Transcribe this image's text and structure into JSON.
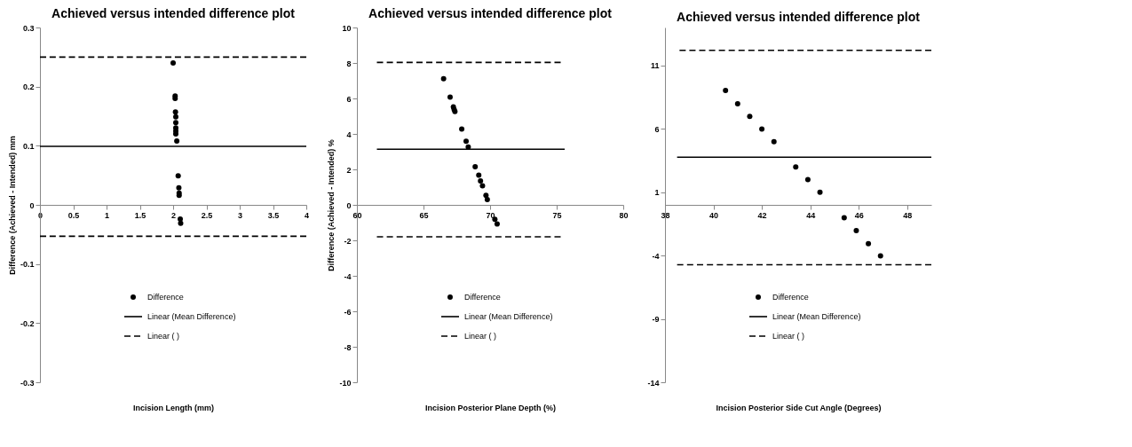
{
  "chart_data": [
    {
      "type": "scatter",
      "title": "Achieved versus intended difference plot",
      "xlabel": "Incision Length (mm)",
      "ylabel": "Difference (Achieved - Intended) mm",
      "xlim": [
        0,
        4
      ],
      "xticks": [
        0,
        0.5,
        1,
        1.5,
        2,
        2.5,
        3,
        3.5,
        4
      ],
      "ylim": [
        -0.3,
        0.3
      ],
      "yticks": [
        -0.3,
        -0.2,
        -0.1,
        0,
        0.1,
        0.2,
        0.3
      ],
      "grid": false,
      "legend": "bottom",
      "series": [
        {
          "name": "Difference",
          "type": "scatter",
          "marker": "circle",
          "color": "#000000",
          "x": [
            2.0,
            2.03,
            2.03,
            2.035,
            2.04,
            2.04,
            2.04,
            2.04,
            2.04,
            2.055,
            2.076,
            2.086,
            2.09,
            2.09,
            2.107,
            2.113
          ],
          "values": [
            0.24,
            0.184,
            0.18,
            0.157,
            0.149,
            0.139,
            0.13,
            0.125,
            0.12,
            0.108,
            0.049,
            0.029,
            0.02,
            0.016,
            -0.024,
            -0.031
          ]
        },
        {
          "name": "Linear (Mean Difference)",
          "type": "line",
          "color": "#000000",
          "line_style": "solid",
          "x": [
            0,
            4
          ],
          "values": [
            0.099,
            0.099
          ]
        },
        {
          "name": "Linear ( )",
          "type": "line",
          "color": "#000000",
          "line_style": "dashed",
          "x": [
            0,
            4
          ],
          "values": [
            0.25,
            0.25
          ]
        },
        {
          "type": "line",
          "color": "#000000",
          "line_style": "dashed",
          "x": [
            0,
            4
          ],
          "values": [
            -0.053,
            -0.053
          ]
        }
      ]
    },
    {
      "type": "scatter",
      "title": "Achieved versus intended difference plot",
      "xlabel": "Incision Posterior Plane Depth (%)",
      "ylabel": "Difference (Achieved - Intended) %",
      "xlim": [
        60,
        80
      ],
      "xticks": [
        60,
        65,
        70,
        75,
        80
      ],
      "ylim": [
        -10,
        10
      ],
      "yticks": [
        -10,
        -8,
        -6,
        -4,
        -2,
        0,
        2,
        4,
        6,
        8,
        10
      ],
      "grid": false,
      "legend": "bottom",
      "series": [
        {
          "name": "Difference",
          "type": "scatter",
          "marker": "circle",
          "color": "#000000",
          "x": [
            66.51,
            67.0,
            67.24,
            67.3,
            67.36,
            67.87,
            68.2,
            68.36,
            68.88,
            69.15,
            69.28,
            69.43,
            69.69,
            69.79,
            70.36,
            70.53
          ],
          "values": [
            7.11,
            6.08,
            5.53,
            5.38,
            5.26,
            4.27,
            3.59,
            3.26,
            2.15,
            1.67,
            1.35,
            1.08,
            0.54,
            0.3,
            -0.81,
            -1.08
          ]
        },
        {
          "name": "Linear (Mean Difference)",
          "type": "line",
          "color": "#000000",
          "line_style": "solid",
          "x": [
            61.5,
            75.6
          ],
          "values": [
            3.14,
            3.14
          ]
        },
        {
          "name": "Linear ( )",
          "type": "line",
          "color": "#000000",
          "line_style": "dashed",
          "x": [
            61.5,
            75.3
          ],
          "values": [
            8.03,
            8.03
          ]
        },
        {
          "type": "line",
          "color": "#000000",
          "line_style": "dashed",
          "x": [
            61.5,
            75.3
          ],
          "values": [
            -1.8,
            -1.8
          ]
        }
      ]
    },
    {
      "type": "scatter",
      "title": "Achieved versus intended difference plot",
      "xlabel": "Incision Posterior Side Cut Angle (Degrees)",
      "xlim": [
        38,
        49
      ],
      "xticks": [
        38,
        40,
        42,
        44,
        46,
        48
      ],
      "ylim": [
        -14,
        14
      ],
      "yticks": [
        -14,
        -9,
        -4,
        1,
        6,
        11
      ],
      "grid": false,
      "legend": "bottom",
      "series": [
        {
          "name": "Difference",
          "type": "scatter",
          "marker": "circle",
          "color": "#000000",
          "x": [
            40.5,
            41.0,
            41.5,
            42.0,
            42.5,
            43.4,
            43.9,
            44.4,
            45.4,
            45.9,
            46.4,
            46.9
          ],
          "values": [
            9.03,
            7.98,
            6.99,
            5.99,
            4.98,
            3.0,
            1.99,
            1.0,
            -1.02,
            -2.03,
            -3.06,
            -4.03
          ]
        },
        {
          "name": "Linear (Mean Difference)",
          "type": "line",
          "color": "#000000",
          "line_style": "solid",
          "x": [
            38.5,
            49
          ],
          "values": [
            3.76,
            3.76
          ]
        },
        {
          "name": "Linear ( )",
          "type": "line",
          "color": "#000000",
          "line_style": "dashed",
          "x": [
            38.6,
            49
          ],
          "values": [
            12.2,
            12.2
          ]
        },
        {
          "type": "line",
          "color": "#000000",
          "line_style": "dashed",
          "x": [
            38.5,
            49
          ],
          "values": [
            -4.72,
            -4.72
          ]
        }
      ]
    }
  ]
}
